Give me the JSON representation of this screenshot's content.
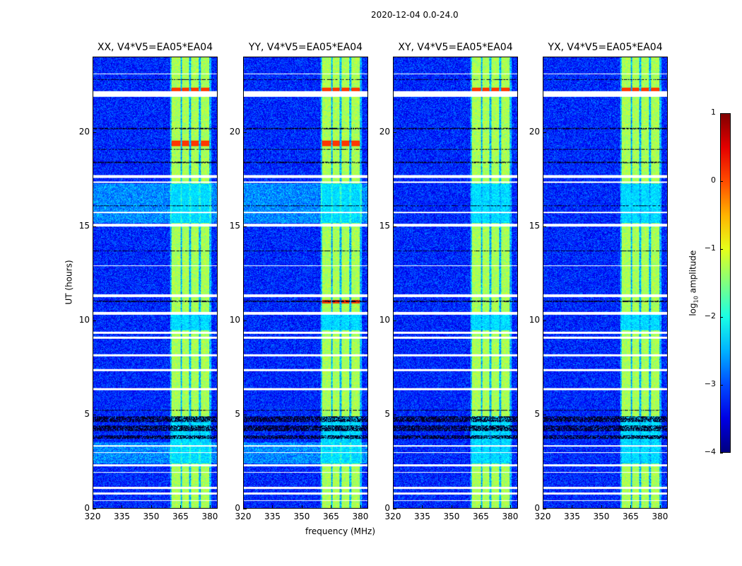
{
  "chart_data": {
    "type": "heatmap",
    "title": "2020-12-04 0.0-24.0",
    "panels": [
      {
        "title": "XX, V4*V5=EA05*EA04"
      },
      {
        "title": "YY, V4*V5=EA05*EA04"
      },
      {
        "title": "XY, V4*V5=EA05*EA04"
      },
      {
        "title": "YX, V4*V5=EA05*EA04"
      }
    ],
    "xlabel": "frequency (MHz)",
    "ylabel": "UT (hours)",
    "xlim": [
      320,
      384
    ],
    "ylim": [
      0,
      24
    ],
    "xticks": [
      320,
      335,
      350,
      365,
      380
    ],
    "yticks": [
      0,
      5,
      10,
      15,
      20
    ],
    "colorbar": {
      "label": "log10 amplitude",
      "label_main": "log",
      "label_sub": "10",
      "label_rest": " amplitude",
      "range": [
        -4,
        1
      ],
      "ticks": [
        1,
        0,
        -1,
        -2,
        -3,
        -4
      ],
      "tick_labels": [
        "1",
        "0",
        "−1",
        "−2",
        "−3",
        "−4"
      ],
      "colormap": "jet"
    },
    "background_level": -3.2,
    "bright_bands_mhz": [
      [
        360.4,
        365
      ],
      [
        365.8,
        369.5
      ],
      [
        370.5,
        374.5
      ],
      [
        375.6,
        380
      ]
    ],
    "bright_band_level": -1.3,
    "flagged_hours": [
      [
        21.9,
        22.2
      ],
      [
        23.1,
        23.15
      ],
      [
        17.6,
        17.75
      ],
      [
        17.35,
        17.4
      ],
      [
        11.25,
        11.4
      ],
      [
        10.3,
        10.45
      ],
      [
        9.3,
        9.4
      ],
      [
        9.05,
        9.15
      ],
      [
        8.1,
        8.2
      ],
      [
        7.3,
        7.4
      ],
      [
        6.3,
        6.4
      ],
      [
        3.3,
        3.35
      ],
      [
        2.95,
        3.0
      ],
      [
        2.25,
        2.35
      ],
      [
        1.9,
        1.95
      ],
      [
        1.05,
        1.15
      ],
      [
        0.75,
        0.85
      ],
      [
        0.4,
        0.45
      ],
      [
        15.0,
        15.15
      ],
      [
        15.7,
        15.8
      ],
      [
        12.9,
        12.95
      ]
    ],
    "dark_lines_hours": [
      [
        22.8,
        22.85
      ],
      [
        20.2,
        20.25
      ],
      [
        19.1,
        19.15
      ],
      [
        18.4,
        18.45
      ],
      [
        16.1,
        16.15
      ],
      [
        14.7,
        14.72
      ],
      [
        13.7,
        13.72
      ],
      [
        12.4,
        12.42
      ],
      [
        11.0,
        11.05
      ],
      [
        5.2,
        5.25
      ],
      [
        4.6,
        4.9
      ],
      [
        4.1,
        4.4
      ],
      [
        3.7,
        3.9
      ]
    ]
  }
}
